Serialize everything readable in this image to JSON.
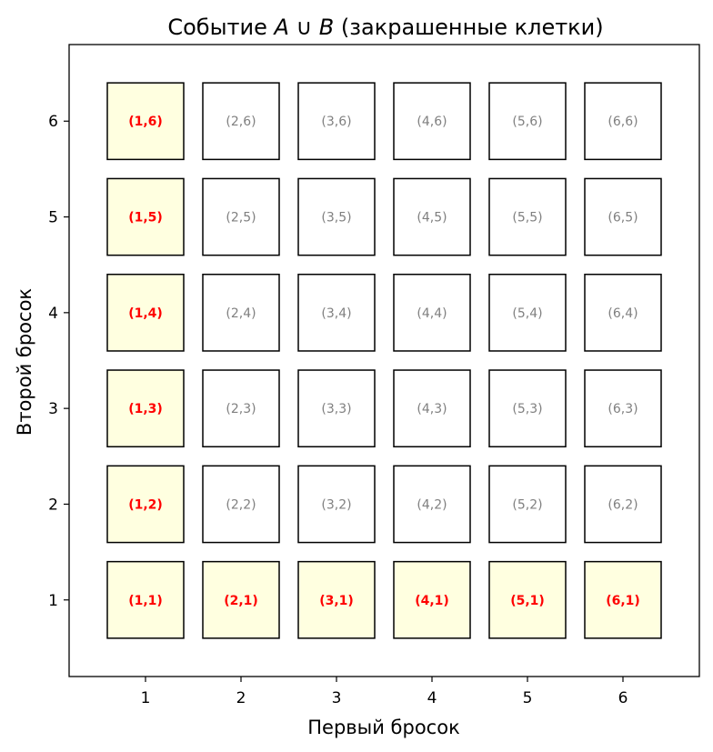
{
  "chart_data": {
    "type": "table",
    "title_parts": [
      "Событие ",
      "A",
      " ∪ ",
      "B",
      " (закрашенные клетки)"
    ],
    "xlabel": "Первый бросок",
    "ylabel": "Второй бросок",
    "x_ticks": [
      1,
      2,
      3,
      4,
      5,
      6
    ],
    "y_ticks": [
      1,
      2,
      3,
      4,
      5,
      6
    ],
    "xlim": [
      0.2,
      6.8
    ],
    "ylim": [
      0.2,
      6.8
    ],
    "cell_size": 0.8,
    "colors": {
      "highlight_fill": "#ffffe0",
      "plain_fill": "#ffffff",
      "highlight_text": "#ff0000",
      "plain_text": "#808080",
      "border": "#000000"
    },
    "cells": [
      {
        "x": 1,
        "y": 6,
        "label": "(1,6)",
        "highlighted": true
      },
      {
        "x": 2,
        "y": 6,
        "label": "(2,6)",
        "highlighted": false
      },
      {
        "x": 3,
        "y": 6,
        "label": "(3,6)",
        "highlighted": false
      },
      {
        "x": 4,
        "y": 6,
        "label": "(4,6)",
        "highlighted": false
      },
      {
        "x": 5,
        "y": 6,
        "label": "(5,6)",
        "highlighted": false
      },
      {
        "x": 6,
        "y": 6,
        "label": "(6,6)",
        "highlighted": false
      },
      {
        "x": 1,
        "y": 5,
        "label": "(1,5)",
        "highlighted": true
      },
      {
        "x": 2,
        "y": 5,
        "label": "(2,5)",
        "highlighted": false
      },
      {
        "x": 3,
        "y": 5,
        "label": "(3,5)",
        "highlighted": false
      },
      {
        "x": 4,
        "y": 5,
        "label": "(4,5)",
        "highlighted": false
      },
      {
        "x": 5,
        "y": 5,
        "label": "(5,5)",
        "highlighted": false
      },
      {
        "x": 6,
        "y": 5,
        "label": "(6,5)",
        "highlighted": false
      },
      {
        "x": 1,
        "y": 4,
        "label": "(1,4)",
        "highlighted": true
      },
      {
        "x": 2,
        "y": 4,
        "label": "(2,4)",
        "highlighted": false
      },
      {
        "x": 3,
        "y": 4,
        "label": "(3,4)",
        "highlighted": false
      },
      {
        "x": 4,
        "y": 4,
        "label": "(4,4)",
        "highlighted": false
      },
      {
        "x": 5,
        "y": 4,
        "label": "(5,4)",
        "highlighted": false
      },
      {
        "x": 6,
        "y": 4,
        "label": "(6,4)",
        "highlighted": false
      },
      {
        "x": 1,
        "y": 3,
        "label": "(1,3)",
        "highlighted": true
      },
      {
        "x": 2,
        "y": 3,
        "label": "(2,3)",
        "highlighted": false
      },
      {
        "x": 3,
        "y": 3,
        "label": "(3,3)",
        "highlighted": false
      },
      {
        "x": 4,
        "y": 3,
        "label": "(4,3)",
        "highlighted": false
      },
      {
        "x": 5,
        "y": 3,
        "label": "(5,3)",
        "highlighted": false
      },
      {
        "x": 6,
        "y": 3,
        "label": "(6,3)",
        "highlighted": false
      },
      {
        "x": 1,
        "y": 2,
        "label": "(1,2)",
        "highlighted": true
      },
      {
        "x": 2,
        "y": 2,
        "label": "(2,2)",
        "highlighted": false
      },
      {
        "x": 3,
        "y": 2,
        "label": "(3,2)",
        "highlighted": false
      },
      {
        "x": 4,
        "y": 2,
        "label": "(4,2)",
        "highlighted": false
      },
      {
        "x": 5,
        "y": 2,
        "label": "(5,2)",
        "highlighted": false
      },
      {
        "x": 6,
        "y": 2,
        "label": "(6,2)",
        "highlighted": false
      },
      {
        "x": 1,
        "y": 1,
        "label": "(1,1)",
        "highlighted": true
      },
      {
        "x": 2,
        "y": 1,
        "label": "(2,1)",
        "highlighted": true
      },
      {
        "x": 3,
        "y": 1,
        "label": "(3,1)",
        "highlighted": true
      },
      {
        "x": 4,
        "y": 1,
        "label": "(4,1)",
        "highlighted": true
      },
      {
        "x": 5,
        "y": 1,
        "label": "(5,1)",
        "highlighted": true
      },
      {
        "x": 6,
        "y": 1,
        "label": "(6,1)",
        "highlighted": true
      }
    ]
  }
}
